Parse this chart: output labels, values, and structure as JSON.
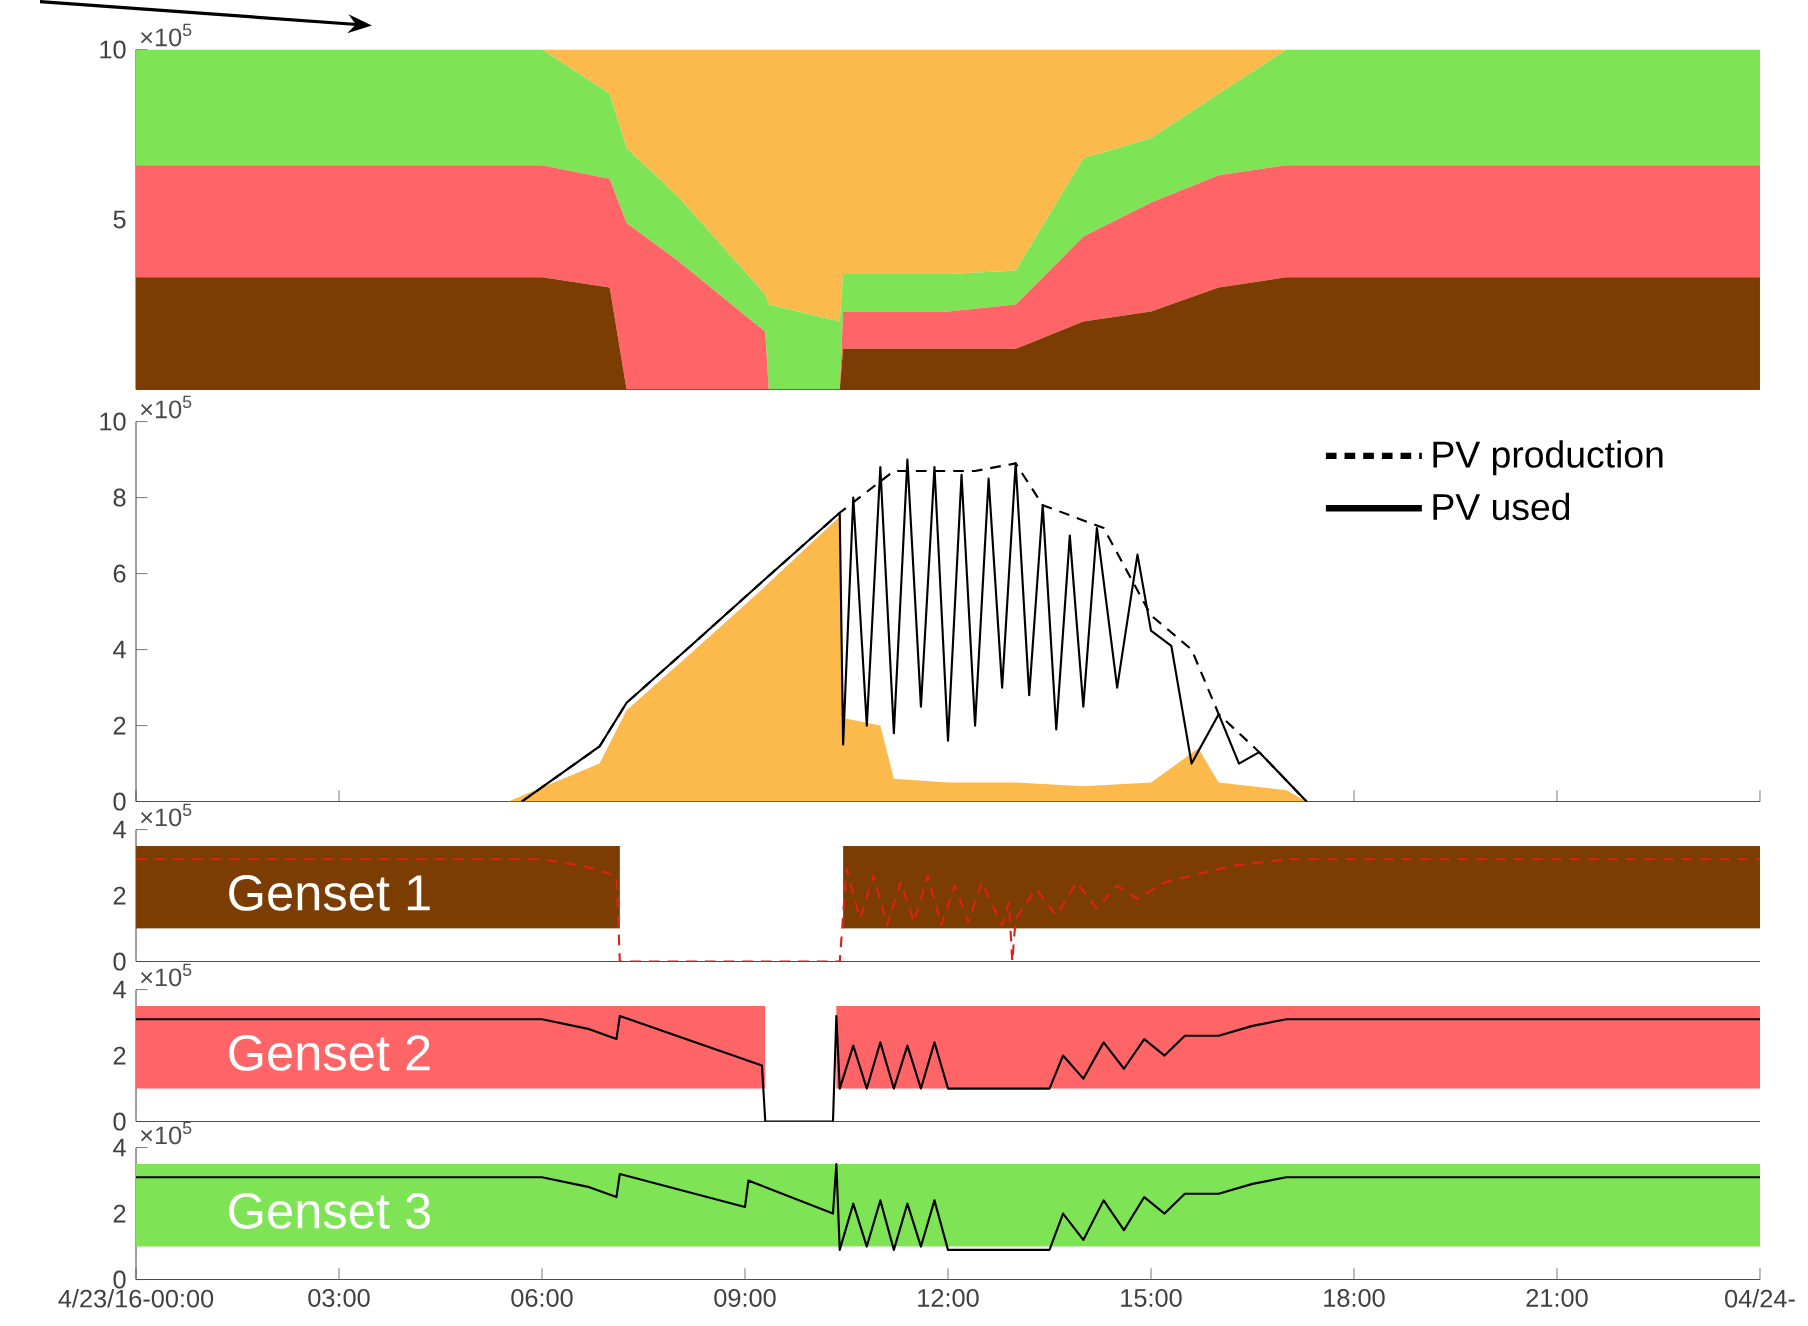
{
  "chart_data": [
    {
      "type": "area",
      "stacked": true,
      "x": [
        0,
        6,
        7,
        7.25,
        8,
        9.3,
        9.35,
        10.4,
        10.45,
        12,
        13,
        14,
        15,
        16,
        17,
        24
      ],
      "series": [
        {
          "color": "#7c3d02",
          "values": [
            3.3,
            3.3,
            3.0,
            0,
            0,
            0,
            0,
            0,
            1.2,
            1.2,
            1.2,
            2.0,
            2.3,
            3.0,
            3.3,
            3.3
          ]
        },
        {
          "color": "#ff6566",
          "values": [
            3.3,
            3.3,
            3.2,
            4.9,
            3.8,
            1.7,
            0,
            0,
            1.1,
            1.1,
            1.3,
            2.5,
            3.2,
            3.3,
            3.3,
            3.3
          ]
        },
        {
          "color": "#7fe356",
          "values": [
            3.4,
            3.4,
            2.5,
            2.2,
            1.9,
            1.1,
            2.5,
            2.0,
            1.1,
            1.1,
            1.0,
            2.3,
            1.9,
            2.4,
            3.4,
            3.4
          ]
        },
        {
          "color": "#fcb94c",
          "values": [
            0,
            0,
            1.3,
            2.9,
            4.3,
            7.2,
            7.5,
            8.0,
            6.6,
            6.6,
            6.5,
            3.2,
            2.6,
            1.3,
            0,
            0
          ]
        }
      ],
      "xlim": [
        0,
        24
      ],
      "ylim": [
        0,
        10
      ],
      "yticks": [
        {
          "value": 0,
          "label": null
        },
        5,
        10
      ],
      "tick_labels": "y",
      "annotations": [
        "×10$^{5}$"
      ]
    },
    {
      "type": "line",
      "series": [
        {
          "type": "area",
          "color": "#fcb94c",
          "x": [
            5.5,
            6.85,
            7.25,
            8.2,
            9.2,
            10.4,
            10.45,
            11,
            11.2,
            12,
            13,
            14,
            15,
            15.7,
            16,
            17,
            17.3
          ],
          "values": [
            0,
            1.0,
            2.4,
            3.9,
            5.5,
            7.5,
            2.2,
            2.0,
            0.6,
            0.5,
            0.5,
            0.4,
            0.5,
            1.4,
            0.5,
            0.3,
            0
          ]
        },
        {
          "name": "PV production",
          "color": "#000000",
          "line_style": "dashed",
          "x": [
            5.7,
            6.85,
            7.25,
            8.2,
            9.2,
            10.4,
            11.2,
            12.4,
            13.0,
            13.4,
            14.3,
            15.0,
            15.6,
            16.0,
            16.6,
            17.3
          ],
          "values": [
            0,
            1.45,
            2.6,
            4.1,
            5.7,
            7.6,
            8.7,
            8.7,
            8.9,
            7.8,
            7.2,
            4.9,
            4.0,
            2.3,
            1.3,
            0
          ]
        },
        {
          "name": "PV used",
          "color": "#000000",
          "line_style": "solid",
          "x": [
            5.7,
            6.85,
            7.25,
            8.2,
            9.2,
            10.4,
            10.45,
            10.6,
            10.8,
            11.0,
            11.2,
            11.4,
            11.6,
            11.8,
            12.0,
            12.2,
            12.4,
            12.6,
            12.8,
            13.0,
            13.2,
            13.4,
            13.6,
            13.8,
            14.0,
            14.2,
            14.5,
            14.8,
            15.0,
            15.3,
            15.6,
            16.0,
            16.3,
            16.6,
            17.3
          ],
          "values": [
            0,
            1.45,
            2.6,
            4.1,
            5.7,
            7.6,
            1.5,
            8.0,
            2.0,
            8.8,
            1.8,
            9.0,
            2.5,
            8.8,
            1.6,
            8.6,
            2.0,
            8.5,
            3.0,
            8.9,
            2.8,
            7.8,
            1.9,
            7.0,
            2.5,
            7.2,
            3.0,
            6.5,
            4.5,
            4.1,
            1.0,
            2.3,
            1.0,
            1.3,
            0
          ]
        }
      ],
      "xlim": [
        0,
        24
      ],
      "ylim": [
        0,
        10
      ],
      "xticks": [
        0,
        3,
        6,
        9,
        12,
        15,
        18,
        21,
        24
      ],
      "yticks": [
        0,
        2,
        4,
        6,
        8,
        10
      ],
      "tick_labels": "y",
      "legend": "top right",
      "annotations": [
        "×10$^{5}$"
      ]
    },
    {
      "type": "line",
      "series": [
        {
          "type": "area",
          "color": "#7c3d02",
          "x": [
            0,
            7.15,
            7.16,
            10.44,
            10.45,
            24
          ],
          "lower": [
            1,
            1,
            null,
            null,
            1,
            1
          ],
          "upper": [
            3.5,
            3.5,
            null,
            null,
            3.5,
            3.5
          ],
          "values": [
            null,
            null,
            null,
            null,
            null,
            null
          ]
        },
        {
          "color": "#e0201b",
          "line_style": "dashed",
          "x": [
            0,
            6.0,
            6.6,
            7.1,
            7.15,
            10.4,
            10.5,
            10.7,
            10.9,
            11.1,
            11.3,
            11.5,
            11.7,
            11.9,
            12.1,
            12.3,
            12.5,
            12.8,
            12.9,
            12.95,
            13.0,
            13.3,
            13.6,
            13.9,
            14.2,
            14.5,
            14.8,
            15.2,
            15.6,
            16.2,
            17.0,
            24
          ],
          "values": [
            3.1,
            3.1,
            2.9,
            2.6,
            0,
            0,
            2.8,
            1.3,
            2.6,
            1.1,
            2.4,
            1.2,
            2.6,
            1.1,
            2.3,
            1.2,
            2.4,
            1.1,
            1.8,
            0,
            1.3,
            2.2,
            1.4,
            2.4,
            1.6,
            2.3,
            1.9,
            2.4,
            2.6,
            2.9,
            3.1,
            3.1
          ]
        }
      ],
      "xlim": [
        0,
        24
      ],
      "ylim": [
        0,
        4
      ],
      "yticks": [
        0,
        2,
        4
      ],
      "tick_labels": "y",
      "annotations": [
        "×10$^{5}$",
        "Genset 1"
      ]
    },
    {
      "type": "line",
      "series": [
        {
          "type": "area",
          "color": "#ff6566",
          "x": [
            0,
            9.3,
            9.31,
            10.34,
            10.35,
            24
          ],
          "lower": [
            1,
            1,
            null,
            null,
            1,
            1
          ],
          "upper": [
            3.5,
            3.5,
            null,
            null,
            3.5,
            3.5
          ],
          "values": [
            null,
            null,
            null,
            null,
            null,
            null
          ]
        },
        {
          "color": "#000000",
          "line_style": "solid",
          "x": [
            0,
            6.0,
            6.7,
            7.1,
            7.15,
            9.25,
            9.3,
            10.3,
            10.35,
            10.4,
            10.6,
            10.8,
            11.0,
            11.2,
            11.4,
            11.6,
            11.8,
            12.0,
            13.5,
            13.7,
            14.0,
            14.3,
            14.6,
            14.9,
            15.2,
            15.5,
            16.0,
            16.5,
            17.0,
            24
          ],
          "values": [
            3.1,
            3.1,
            2.8,
            2.5,
            3.2,
            1.7,
            0,
            0,
            3.2,
            1.0,
            2.3,
            1.0,
            2.4,
            1.0,
            2.3,
            1.0,
            2.4,
            1.0,
            1.0,
            2.0,
            1.3,
            2.4,
            1.6,
            2.5,
            2.0,
            2.6,
            2.6,
            2.9,
            3.1,
            3.1
          ]
        }
      ],
      "xlim": [
        0,
        24
      ],
      "ylim": [
        0,
        4
      ],
      "yticks": [
        0,
        2,
        4
      ],
      "tick_labels": "y",
      "annotations": [
        "×10$^{5}$",
        "Genset 2"
      ]
    },
    {
      "type": "line",
      "series": [
        {
          "type": "area",
          "color": "#7fe356",
          "x": [
            0,
            24
          ],
          "lower": [
            1,
            1
          ],
          "upper": [
            3.5,
            3.5
          ],
          "values": [
            null,
            null
          ]
        },
        {
          "color": "#000000",
          "line_style": "solid",
          "x": [
            0,
            6.0,
            6.7,
            7.1,
            7.15,
            9.0,
            9.05,
            10.3,
            10.35,
            10.4,
            10.6,
            10.8,
            11.0,
            11.2,
            11.4,
            11.6,
            11.8,
            12.0,
            13.5,
            13.7,
            14.0,
            14.3,
            14.6,
            14.9,
            15.2,
            15.5,
            16.0,
            16.5,
            17.0,
            24
          ],
          "values": [
            3.1,
            3.1,
            2.8,
            2.5,
            3.2,
            2.2,
            3.0,
            2.0,
            3.5,
            0.9,
            2.3,
            1.0,
            2.4,
            0.9,
            2.3,
            1.0,
            2.4,
            0.9,
            0.9,
            2.0,
            1.2,
            2.4,
            1.5,
            2.5,
            2.0,
            2.6,
            2.6,
            2.9,
            3.1,
            3.1
          ]
        }
      ],
      "xlim": [
        0,
        24
      ],
      "ylim": [
        0,
        4
      ],
      "xticks": [
        {
          "value": 0,
          "label": "4/23/16-00:00"
        },
        {
          "value": 3,
          "label": "03:00"
        },
        {
          "value": 6,
          "label": "06:00"
        },
        {
          "value": 9,
          "label": "09:00"
        },
        {
          "value": 12,
          "label": "12:00"
        },
        {
          "value": 15,
          "label": "15:00"
        },
        {
          "value": 18,
          "label": "18:00"
        },
        {
          "value": 21,
          "label": "21:00"
        },
        {
          "value": 24,
          "label": "04/24-"
        }
      ],
      "yticks": [
        0,
        2,
        4
      ],
      "annotations": [
        "×10$^{5}$",
        "Genset 3"
      ]
    }
  ]
}
